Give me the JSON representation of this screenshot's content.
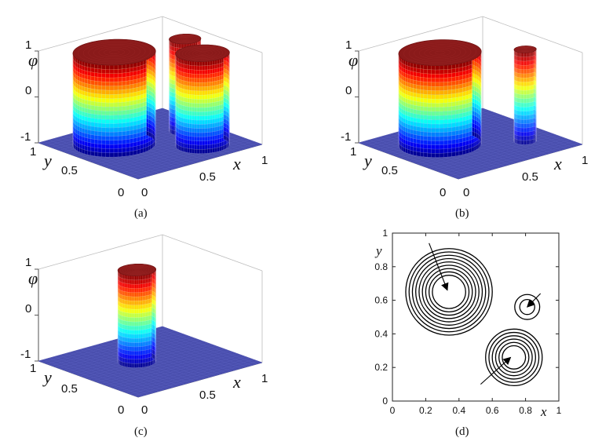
{
  "panels": [
    {
      "caption": "(a)",
      "zlabel": "φ",
      "xlabel": "x",
      "ylabel": "y",
      "z_ticks": [
        "1",
        "0",
        "-1"
      ],
      "x_ticks": [
        "0",
        "0.5",
        "1"
      ],
      "y_ticks": [
        "1",
        "0.5",
        "0"
      ]
    },
    {
      "caption": "(b)",
      "zlabel": "φ",
      "xlabel": "x",
      "ylabel": "y",
      "z_ticks": [
        "1",
        "0",
        "-1"
      ],
      "x_ticks": [
        "0",
        "0.5",
        "1"
      ],
      "y_ticks": [
        "1",
        "0.5",
        "0"
      ]
    },
    {
      "caption": "(c)",
      "zlabel": "φ",
      "xlabel": "x",
      "ylabel": "y",
      "z_ticks": [
        "1",
        "0",
        "-1"
      ],
      "x_ticks": [
        "0",
        "0.5",
        "1"
      ],
      "y_ticks": [
        "1",
        "0.5",
        "0"
      ]
    },
    {
      "caption": "(d)",
      "xlabel": "x",
      "ylabel": "y",
      "x_ticks": [
        "0",
        "0.2",
        "0.4",
        "0.6",
        "0.8",
        "1"
      ],
      "y_ticks": [
        "0",
        "0.2",
        "0.4",
        "0.6",
        "0.8",
        "1"
      ]
    }
  ],
  "chart_data": [
    {
      "type": "surface",
      "xlim": [
        0,
        1
      ],
      "ylim": [
        0,
        1
      ],
      "zlim": [
        -1,
        1
      ],
      "colormap": "jet",
      "drops": [
        {
          "cx": 0.33,
          "cy": 0.65,
          "r": 0.26
        },
        {
          "cx": 0.82,
          "cy": 0.55,
          "r": 0.1
        },
        {
          "cx": 0.72,
          "cy": 0.25,
          "r": 0.17
        }
      ]
    },
    {
      "type": "surface",
      "xlim": [
        0,
        1
      ],
      "ylim": [
        0,
        1
      ],
      "zlim": [
        -1,
        1
      ],
      "colormap": "jet",
      "drops": [
        {
          "cx": 0.35,
          "cy": 0.62,
          "r": 0.26
        },
        {
          "cx": 0.78,
          "cy": 0.3,
          "r": 0.07
        }
      ]
    },
    {
      "type": "surface",
      "xlim": [
        0,
        1
      ],
      "ylim": [
        0,
        1
      ],
      "zlim": [
        -1,
        1
      ],
      "colormap": "jet",
      "drops": [
        {
          "cx": 0.44,
          "cy": 0.56,
          "r": 0.12
        }
      ]
    },
    {
      "type": "contour",
      "xlim": [
        0,
        1
      ],
      "ylim": [
        0,
        1
      ],
      "contour_sets": [
        {
          "cx": 0.34,
          "cy": 0.65,
          "radii": [
            0.26,
            0.24,
            0.22,
            0.2,
            0.18,
            0.16,
            0.14,
            0.12,
            0.1
          ]
        },
        {
          "cx": 0.81,
          "cy": 0.56,
          "radii": [
            0.075,
            0.045
          ]
        },
        {
          "cx": 0.73,
          "cy": 0.26,
          "radii": [
            0.17,
            0.15,
            0.13,
            0.11,
            0.09,
            0.07
          ]
        }
      ],
      "arrows": [
        {
          "from": [
            0.22,
            0.94
          ],
          "to": [
            0.33,
            0.66
          ]
        },
        {
          "from": [
            0.89,
            0.64
          ],
          "to": [
            0.81,
            0.56
          ]
        },
        {
          "from": [
            0.53,
            0.1
          ],
          "to": [
            0.71,
            0.26
          ]
        }
      ]
    }
  ]
}
